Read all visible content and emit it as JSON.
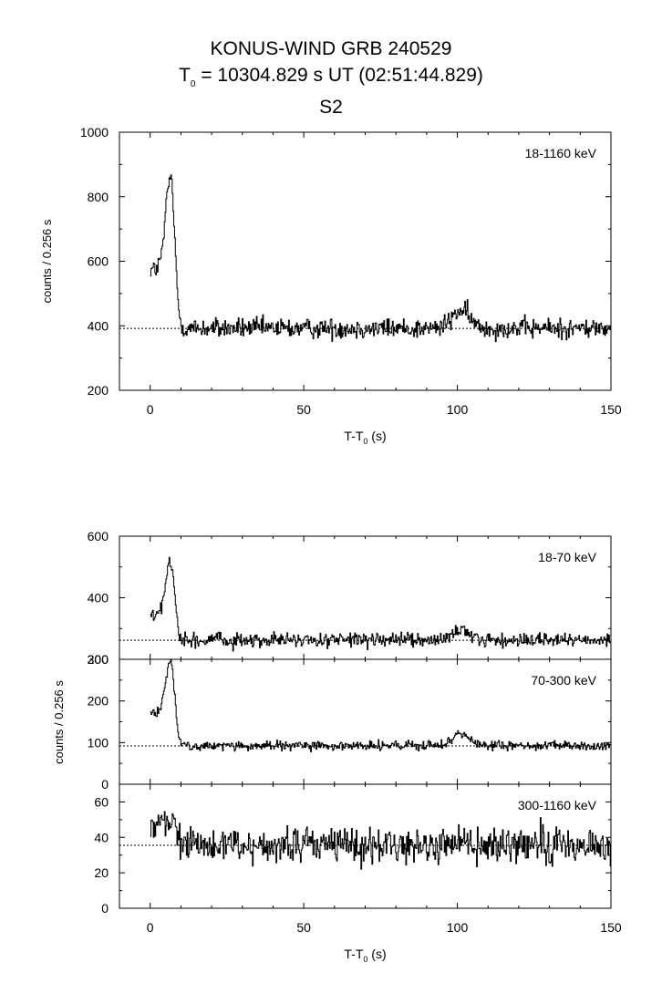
{
  "header": {
    "title": "KONUS-WIND GRB 240529",
    "t0_prefix": "T",
    "t0_sub": "0",
    "t0_rest": " = 10304.829 s UT (02:51:44.829)",
    "detector": "S2"
  },
  "colors": {
    "line": "#000000",
    "background": "#ffffff"
  },
  "chart_data": [
    {
      "type": "line",
      "id": "top",
      "band": "18-1160 keV",
      "ylabel": "counts / 0.256 s",
      "xlabel_main": "T-T",
      "xlabel_sub": "0",
      "xlabel_tail": " (s)",
      "xlim": [
        -10,
        150
      ],
      "ylim": [
        200,
        1000
      ],
      "xticks": [
        0,
        50,
        100,
        150
      ],
      "yticks": [
        200,
        400,
        600,
        800,
        1000
      ],
      "background_level": 392,
      "bin_s": 0.256,
      "start_s": 0,
      "pulse": {
        "peak_t": 6.5,
        "amp": 470,
        "rise": 2.2,
        "decay": 1.9,
        "pre": 575
      },
      "bump": {
        "peak_t": 101,
        "amp": 55,
        "width": 4
      },
      "noise": 22
    },
    {
      "type": "line",
      "id": "b1",
      "band": "18-70 keV",
      "xlim": [
        -10,
        150
      ],
      "ylim": [
        200,
        600
      ],
      "yticks": [
        200,
        400,
        600
      ],
      "background_level": 262,
      "bin_s": 0.256,
      "start_s": 0,
      "pulse": {
        "peak_t": 6.5,
        "amp": 255,
        "rise": 2.2,
        "decay": 1.9,
        "pre": 340
      },
      "bump": {
        "peak_t": 101,
        "amp": 28,
        "width": 4
      },
      "noise": 16
    },
    {
      "type": "line",
      "id": "b2",
      "band": "70-300 keV",
      "xlim": [
        -10,
        150
      ],
      "ylim": [
        0,
        300
      ],
      "yticks": [
        0,
        100,
        200,
        300
      ],
      "ylabel": "counts / 0.256 s",
      "background_level": 92,
      "bin_s": 0.256,
      "start_s": 0,
      "pulse": {
        "peak_t": 6.5,
        "amp": 205,
        "rise": 2.2,
        "decay": 1.9,
        "pre": 170
      },
      "bump": {
        "peak_t": 101,
        "amp": 30,
        "width": 4
      },
      "noise": 8
    },
    {
      "type": "line",
      "id": "b3",
      "band": "300-1160 keV",
      "xlim": [
        -10,
        150
      ],
      "ylim": [
        0,
        70
      ],
      "yticks": [
        0,
        20,
        40,
        60
      ],
      "xticks": [
        0,
        50,
        100,
        150
      ],
      "xlabel_main": "T-T",
      "xlabel_sub": "0",
      "xlabel_tail": " (s)",
      "background_level": 35.5,
      "bin_s": 0.256,
      "start_s": 0,
      "pulse": {
        "peak_t": 6,
        "amp": 17,
        "rise": 3,
        "decay": 3,
        "pre": 44
      },
      "bump": {
        "peak_t": 101,
        "amp": 2,
        "width": 4
      },
      "noise": 7
    }
  ]
}
